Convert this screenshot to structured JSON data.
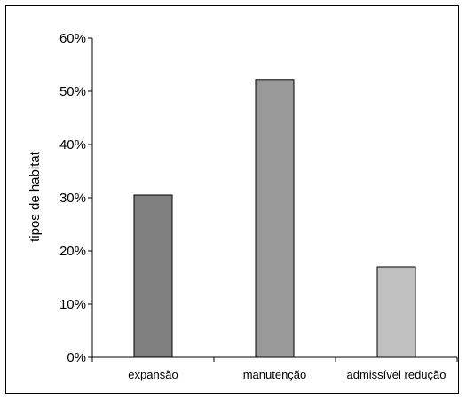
{
  "chart_data": {
    "type": "bar",
    "title": "",
    "xlabel": "",
    "ylabel": "tipos de habitat",
    "categories": [
      "expansão",
      "manutenção",
      "admissível redução"
    ],
    "values": [
      30.5,
      52.2,
      17.0
    ],
    "value_unit": "%",
    "ylim": [
      0,
      60
    ],
    "yticks": [
      0,
      10,
      20,
      30,
      40,
      50,
      60
    ],
    "ytick_labels": [
      "0%",
      "10%",
      "20%",
      "30%",
      "40%",
      "50%",
      "60%"
    ],
    "grid": false,
    "legend": "none",
    "bar_colors": [
      "#808080",
      "#999999",
      "#c0c0c0"
    ]
  }
}
